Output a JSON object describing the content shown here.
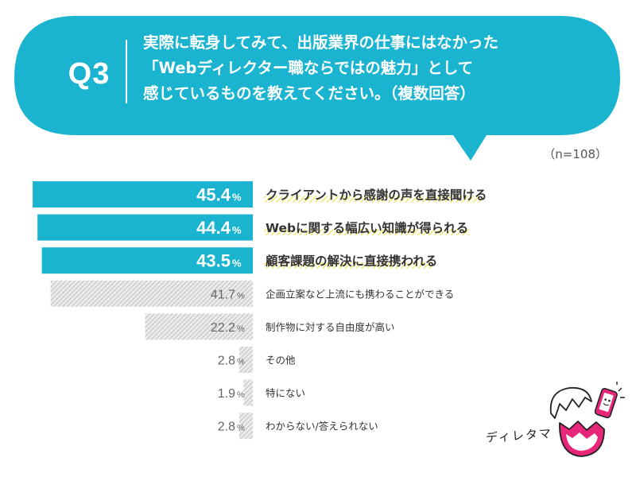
{
  "question": {
    "label": "Q3",
    "lines": [
      "実際に転身してみて、出版業界の仕事にはなかった",
      "「Webディレクター職ならではの魅力」として",
      "感じているものを教えてください。（複数回答）"
    ]
  },
  "sample_size": "（n=108）",
  "mascot": {
    "name": "ディレタマ"
  },
  "colors": {
    "bubble": "#1ab4d1",
    "bar_top": "#1ab4d1",
    "bar_other": "#bdbdbd",
    "highlight": "#f2e24c"
  },
  "chart_data": {
    "type": "bar",
    "orientation": "horizontal",
    "unit": "%",
    "xlim": [
      0,
      100
    ],
    "categories": [
      "クライアントから感謝の声を直接聞ける",
      "Webに関する幅広い知識が得られる",
      "顧客課題の解決に直接携われる",
      "企画立案など上流にも携わることができる",
      "制作物に対する自由度が高い",
      "その他",
      "特にない",
      "わからない/答えられない"
    ],
    "values": [
      45.4,
      44.4,
      43.5,
      41.7,
      22.2,
      2.8,
      1.9,
      2.8
    ],
    "value_labels": [
      "45.4",
      "44.4",
      "43.5",
      "41.7",
      "22.2",
      "2.8",
      "1.9",
      "2.8"
    ],
    "highlighted": [
      true,
      true,
      true,
      false,
      false,
      false,
      false,
      false
    ],
    "title": "",
    "xlabel": "",
    "ylabel": ""
  }
}
